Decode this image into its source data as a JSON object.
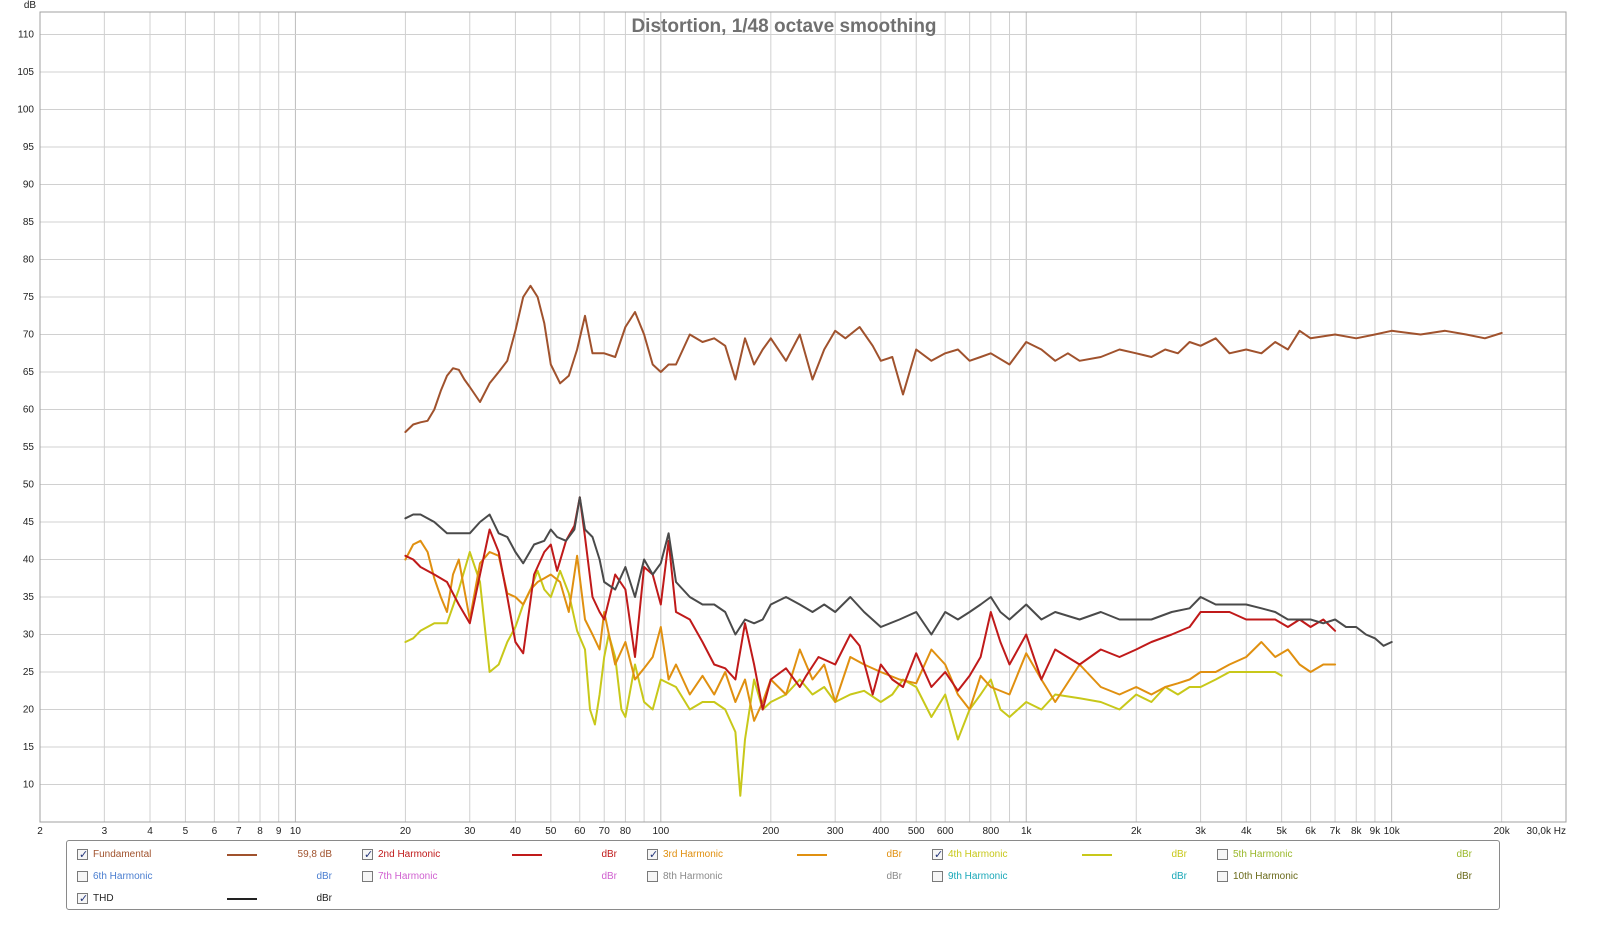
{
  "chart_data": {
    "type": "line",
    "title": "Distortion, 1/48 octave smoothing",
    "ylabel": "dB",
    "xlabel": "",
    "x_unit_label": "Hz",
    "x_scale": "log",
    "xlim": [
      2,
      30000
    ],
    "ylim": [
      5,
      113
    ],
    "grid": true,
    "y_ticks": [
      10,
      15,
      20,
      25,
      30,
      35,
      40,
      45,
      50,
      55,
      60,
      65,
      70,
      75,
      80,
      85,
      90,
      95,
      100,
      105,
      110
    ],
    "x_ticks": [
      {
        "v": 2,
        "label": "2"
      },
      {
        "v": 3,
        "label": "3"
      },
      {
        "v": 4,
        "label": "4"
      },
      {
        "v": 5,
        "label": "5"
      },
      {
        "v": 6,
        "label": "6"
      },
      {
        "v": 7,
        "label": "7"
      },
      {
        "v": 8,
        "label": "8"
      },
      {
        "v": 9,
        "label": "9"
      },
      {
        "v": 10,
        "label": "10"
      },
      {
        "v": 20,
        "label": "20"
      },
      {
        "v": 30,
        "label": "30"
      },
      {
        "v": 40,
        "label": "40"
      },
      {
        "v": 50,
        "label": "50"
      },
      {
        "v": 60,
        "label": "60"
      },
      {
        "v": 70,
        "label": "70"
      },
      {
        "v": 80,
        "label": "80"
      },
      {
        "v": 100,
        "label": "100"
      },
      {
        "v": 200,
        "label": "200"
      },
      {
        "v": 300,
        "label": "300"
      },
      {
        "v": 400,
        "label": "400"
      },
      {
        "v": 500,
        "label": "500"
      },
      {
        "v": 600,
        "label": "600"
      },
      {
        "v": 800,
        "label": "800"
      },
      {
        "v": 1000,
        "label": "1k"
      },
      {
        "v": 2000,
        "label": "2k"
      },
      {
        "v": 3000,
        "label": "3k"
      },
      {
        "v": 4000,
        "label": "4k"
      },
      {
        "v": 5000,
        "label": "5k"
      },
      {
        "v": 6000,
        "label": "6k"
      },
      {
        "v": 7000,
        "label": "7k"
      },
      {
        "v": 8000,
        "label": "8k"
      },
      {
        "v": 9000,
        "label": "9k"
      },
      {
        "v": 10000,
        "label": "10k"
      },
      {
        "v": 20000,
        "label": "20k"
      },
      {
        "v": 30000,
        "label": "30,0k Hz"
      }
    ],
    "series": [
      {
        "name": "Fundamental",
        "color": "#a0522d",
        "x": [
          20,
          21,
          22,
          23,
          24,
          25,
          26,
          27,
          28,
          29,
          30,
          32,
          34,
          36,
          38,
          40,
          42,
          44,
          46,
          48,
          50,
          53,
          56,
          59,
          62,
          65,
          70,
          75,
          80,
          85,
          90,
          95,
          100,
          105,
          110,
          120,
          130,
          140,
          150,
          160,
          170,
          180,
          190,
          200,
          220,
          240,
          260,
          280,
          300,
          320,
          350,
          380,
          400,
          430,
          460,
          500,
          550,
          600,
          650,
          700,
          750,
          800,
          900,
          1000,
          1100,
          1200,
          1300,
          1400,
          1600,
          1800,
          2000,
          2200,
          2400,
          2600,
          2800,
          3000,
          3300,
          3600,
          4000,
          4400,
          4800,
          5200,
          5600,
          6000,
          7000,
          8000,
          9000,
          10000,
          12000,
          14000,
          16000,
          18000,
          20000
        ],
        "y": [
          57,
          58,
          58.3,
          58.5,
          60,
          62.5,
          64.5,
          65.5,
          65.3,
          64,
          63,
          61,
          63.5,
          65,
          66.5,
          70.5,
          75,
          76.5,
          75,
          71.5,
          66,
          63.5,
          64.5,
          68,
          72.5,
          67.5,
          67.5,
          67,
          71,
          73,
          70,
          66,
          65,
          66,
          66,
          70,
          69,
          69.5,
          68.5,
          64,
          69.5,
          66,
          68,
          69.5,
          66.5,
          70,
          64,
          68,
          70.5,
          69.5,
          71,
          68.5,
          66.5,
          67,
          62,
          68,
          66.5,
          67.5,
          68,
          66.5,
          67,
          67.5,
          66,
          69,
          68,
          66.5,
          67.5,
          66.5,
          67,
          68,
          67.5,
          67,
          68,
          67.5,
          69,
          68.5,
          69.5,
          67.5,
          68,
          67.5,
          69,
          68,
          70.5,
          69.5,
          70,
          69.5,
          70,
          70.5,
          70,
          70.5,
          70,
          69.5,
          70.2
        ]
      },
      {
        "name": "2nd Harmonic",
        "color": "#c01a1a",
        "x": [
          20,
          21,
          22,
          24,
          26,
          28,
          30,
          32,
          34,
          36,
          38,
          40,
          42,
          45,
          48,
          50,
          52,
          55,
          58,
          60,
          62,
          65,
          68,
          70,
          75,
          80,
          85,
          90,
          95,
          100,
          105,
          110,
          120,
          130,
          140,
          150,
          160,
          170,
          180,
          190,
          200,
          220,
          240,
          250,
          270,
          300,
          330,
          350,
          380,
          400,
          430,
          460,
          500,
          550,
          600,
          650,
          700,
          750,
          800,
          850,
          900,
          1000,
          1100,
          1200,
          1400,
          1600,
          1800,
          2000,
          2200,
          2500,
          2800,
          3000,
          3300,
          3600,
          4000,
          4400,
          4800,
          5200,
          5600,
          6000,
          6500,
          7000
        ],
        "y": [
          40.5,
          40,
          39,
          38,
          37,
          34,
          31.5,
          38,
          44,
          41,
          35,
          29,
          27.5,
          38,
          41,
          42,
          38.5,
          42.5,
          44.5,
          48.3,
          43,
          35,
          33,
          32,
          38,
          36,
          27,
          39,
          38,
          34,
          42.5,
          33,
          32,
          29,
          26,
          25.5,
          24,
          31.5,
          26,
          20,
          24,
          25.5,
          23,
          24.5,
          27,
          26,
          30,
          28.5,
          22,
          26,
          24,
          23,
          27.5,
          23,
          25,
          22.5,
          24.5,
          27,
          33,
          29,
          26,
          30,
          24,
          28,
          26,
          28,
          27,
          28,
          29,
          30,
          31,
          33,
          33,
          33,
          32,
          32,
          32,
          31,
          32,
          31,
          32,
          30.5
        ]
      },
      {
        "name": "3rd Harmonic",
        "color": "#e09010",
        "x": [
          20,
          21,
          22,
          23,
          24,
          25,
          26,
          27,
          28,
          30,
          32,
          34,
          36,
          38,
          40,
          42,
          44,
          46,
          48,
          50,
          53,
          56,
          59,
          62,
          65,
          68,
          70,
          75,
          80,
          85,
          90,
          95,
          100,
          105,
          110,
          120,
          130,
          140,
          150,
          160,
          170,
          180,
          190,
          200,
          220,
          240,
          260,
          280,
          300,
          330,
          360,
          400,
          450,
          500,
          550,
          600,
          650,
          700,
          750,
          800,
          900,
          1000,
          1100,
          1200,
          1400,
          1600,
          1800,
          2000,
          2200,
          2400,
          2600,
          2800,
          3000,
          3300,
          3600,
          4000,
          4400,
          4800,
          5200,
          5600,
          6000,
          6500,
          7000
        ],
        "y": [
          40,
          42,
          42.5,
          41,
          37.5,
          35,
          33,
          38,
          40,
          32,
          39.5,
          41,
          40.5,
          35.5,
          35,
          34,
          36,
          37,
          37.5,
          38,
          37,
          33,
          40.5,
          32,
          30,
          28,
          33,
          26,
          29,
          24,
          25.5,
          27,
          31,
          24,
          26,
          22,
          24.5,
          22,
          25,
          21,
          24,
          18.5,
          21,
          24,
          22,
          28,
          24,
          26,
          21,
          27,
          26,
          25,
          24,
          23.5,
          28,
          26,
          22,
          20,
          24.5,
          23,
          22,
          27.5,
          24,
          21,
          26,
          23,
          22,
          23,
          22,
          23,
          23.5,
          24,
          25,
          25,
          26,
          27,
          29,
          27,
          28,
          26,
          25,
          26,
          26
        ]
      },
      {
        "name": "4th Harmonic",
        "color": "#c8c81a",
        "x": [
          20,
          21,
          22,
          24,
          26,
          28,
          30,
          32,
          34,
          36,
          38,
          40,
          42,
          44,
          46,
          48,
          50,
          53,
          56,
          59,
          62,
          64,
          66,
          68,
          70,
          72,
          75,
          78,
          80,
          85,
          90,
          95,
          100,
          110,
          120,
          130,
          140,
          150,
          160,
          165,
          170,
          180,
          190,
          200,
          220,
          240,
          260,
          280,
          300,
          330,
          360,
          400,
          430,
          460,
          500,
          550,
          600,
          650,
          700,
          750,
          800,
          850,
          900,
          1000,
          1100,
          1200,
          1400,
          1600,
          1800,
          2000,
          2200,
          2400,
          2600,
          2800,
          3000,
          3300,
          3600,
          4000,
          4400,
          4800,
          5000
        ],
        "y": [
          29,
          29.5,
          30.5,
          31.5,
          31.5,
          36,
          41,
          37,
          25,
          26,
          29,
          31,
          34,
          36,
          38.5,
          36,
          35,
          38.5,
          35.5,
          30.5,
          28,
          20,
          18,
          22,
          27,
          30,
          27,
          20,
          19,
          26,
          21,
          20,
          24,
          23,
          20,
          21,
          21,
          20,
          17,
          8.5,
          16,
          24,
          20,
          21,
          22,
          24,
          22,
          23,
          21,
          22,
          22.5,
          21,
          22,
          24,
          23,
          19,
          22,
          16,
          20,
          22,
          24,
          20,
          19,
          21,
          20,
          22,
          21.5,
          21,
          20,
          22,
          21,
          23,
          22,
          23,
          23,
          24,
          25,
          25,
          25,
          25,
          24.5
        ]
      },
      {
        "name": "THD",
        "color": "#4a4a4a",
        "x": [
          20,
          21,
          22,
          24,
          26,
          28,
          30,
          32,
          34,
          36,
          38,
          40,
          42,
          45,
          48,
          50,
          52,
          55,
          58,
          60,
          62,
          65,
          68,
          70,
          75,
          80,
          85,
          90,
          95,
          100,
          105,
          110,
          120,
          130,
          140,
          150,
          160,
          170,
          180,
          190,
          200,
          220,
          240,
          260,
          280,
          300,
          330,
          360,
          400,
          450,
          500,
          550,
          600,
          650,
          700,
          750,
          800,
          850,
          900,
          1000,
          1100,
          1200,
          1400,
          1600,
          1800,
          2000,
          2200,
          2500,
          2800,
          3000,
          3300,
          3600,
          4000,
          4400,
          4800,
          5200,
          5600,
          6000,
          6500,
          7000,
          7500,
          8000,
          8500,
          9000,
          9500,
          10000
        ],
        "y": [
          45.5,
          46,
          46,
          45,
          43.5,
          43.5,
          43.5,
          45,
          46,
          43.5,
          43,
          41,
          39.5,
          42,
          42.5,
          44,
          43,
          42.5,
          44,
          48.3,
          44,
          43,
          40,
          37,
          36,
          39,
          35,
          40,
          38,
          39.5,
          43.5,
          37,
          35,
          34,
          34,
          33,
          30,
          32,
          31.5,
          32,
          34,
          35,
          34,
          33,
          34,
          33,
          35,
          33,
          31,
          32,
          33,
          30,
          33,
          32,
          33,
          34,
          35,
          33,
          32,
          34,
          32,
          33,
          32,
          33,
          32,
          32,
          32,
          33,
          33.5,
          35,
          34,
          34,
          34,
          33.5,
          33,
          32,
          32,
          32,
          31.5,
          32,
          31,
          31,
          30,
          29.5,
          28.5,
          29
        ]
      }
    ]
  },
  "legend": [
    {
      "label": "Fundamental",
      "checked": true,
      "value": "59,8 dB",
      "color": "#a0522d",
      "show_line": true
    },
    {
      "label": "2nd Harmonic",
      "checked": true,
      "value": "dBr",
      "color": "#c01a1a",
      "show_line": true
    },
    {
      "label": "3rd Harmonic",
      "checked": true,
      "value": "dBr",
      "color": "#e09010",
      "show_line": true
    },
    {
      "label": "4th Harmonic",
      "checked": true,
      "value": "dBr",
      "color": "#c8c81a",
      "show_line": true
    },
    {
      "label": "5th Harmonic",
      "checked": false,
      "value": "dBr",
      "color": "#9ab82a",
      "show_line": false
    },
    {
      "label": "6th Harmonic",
      "checked": false,
      "value": "dBr",
      "color": "#4a7ed0",
      "show_line": false
    },
    {
      "label": "7th Harmonic",
      "checked": false,
      "value": "dBr",
      "color": "#d060d0",
      "show_line": false
    },
    {
      "label": "8th Harmonic",
      "checked": false,
      "value": "dBr",
      "color": "#8a8a8a",
      "show_line": false
    },
    {
      "label": "9th Harmonic",
      "checked": false,
      "value": "dBr",
      "color": "#1aa8b8",
      "show_line": false
    },
    {
      "label": "10th Harmonic",
      "checked": false,
      "value": "dBr",
      "color": "#6a6a1a",
      "show_line": false
    },
    {
      "label": "THD",
      "checked": true,
      "value": "dBr",
      "color": "#222222",
      "show_line": true
    }
  ]
}
